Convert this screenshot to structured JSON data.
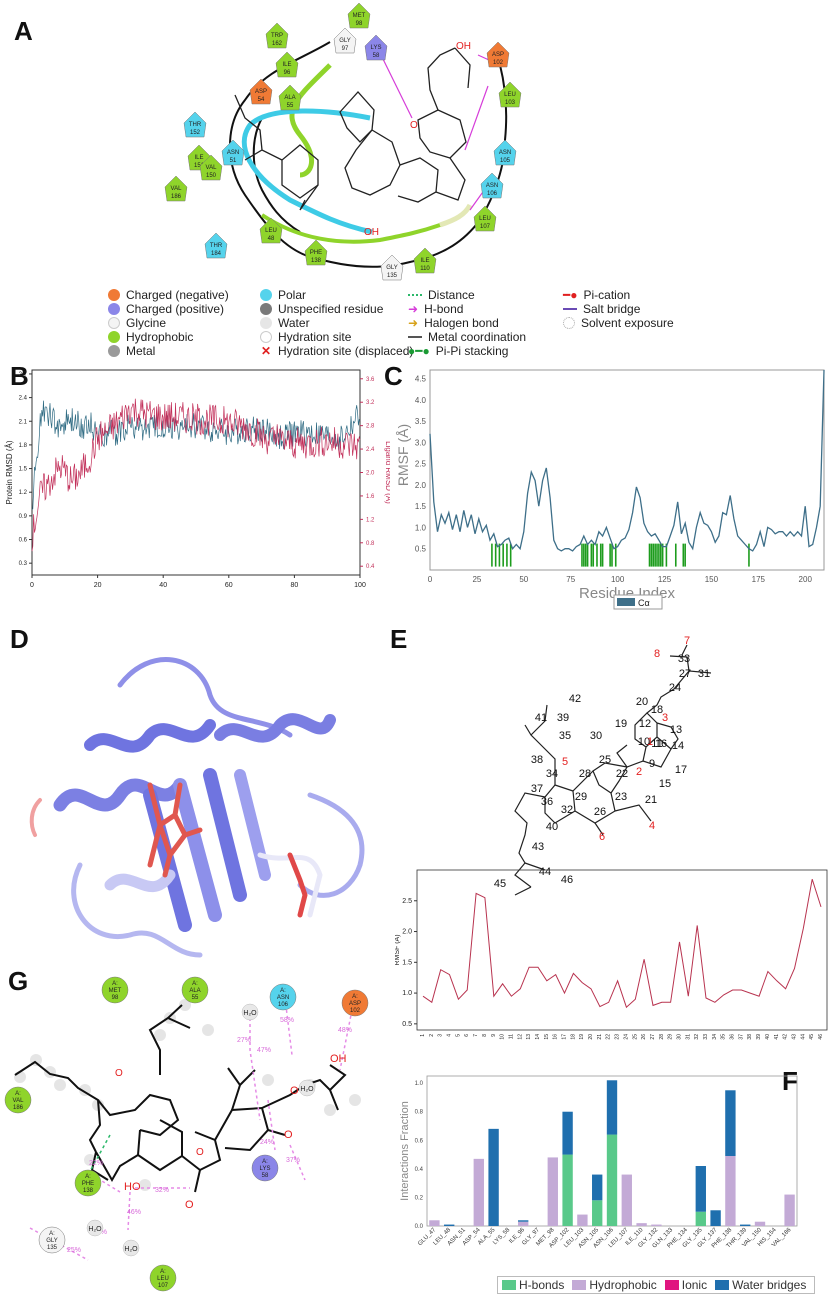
{
  "panel_labels": {
    "a": "A",
    "b": "B",
    "c": "C",
    "d": "D",
    "e": "E",
    "f": "F",
    "g": "G"
  },
  "colors": {
    "charged_negative": "#f07a35",
    "charged_positive": "#8b86e8",
    "glycine": "#f4f4f4",
    "hydrophobic": "#8fd42b",
    "metal": "#9a9a9a",
    "polar": "#55d3ec",
    "protein_rmsd": "#2f6b83",
    "ligand_rmsd": "#c2305a",
    "rmsf_line": "#3e6f89",
    "contact_bar": "#1d9c1d",
    "hbond": "#59c98a",
    "hydrophobic_bar": "#c3aad6",
    "ionic": "#e0157f",
    "water_bridge": "#1f6fae"
  },
  "panel_a": {
    "residues": [
      {
        "name": "TRP",
        "num": "162",
        "type": "hydrophobic"
      },
      {
        "name": "MET",
        "num": "98",
        "type": "hydrophobic"
      },
      {
        "name": "GLY",
        "num": "97",
        "type": "glycine"
      },
      {
        "name": "ILE",
        "num": "96",
        "type": "hydrophobic"
      },
      {
        "name": "LYS",
        "num": "58",
        "type": "charged_positive"
      },
      {
        "name": "ASP",
        "num": "54",
        "type": "charged_negative"
      },
      {
        "name": "ALA",
        "num": "55",
        "type": "hydrophobic"
      },
      {
        "name": "THR",
        "num": "152",
        "type": "polar"
      },
      {
        "name": "ASN",
        "num": "51",
        "type": "polar"
      },
      {
        "name": "ILE",
        "num": "151",
        "type": "hydrophobic"
      },
      {
        "name": "VAL",
        "num": "186",
        "type": "hydrophobic"
      },
      {
        "name": "VAL",
        "num": "150",
        "type": "hydrophobic"
      },
      {
        "name": "THR",
        "num": "184",
        "type": "polar"
      },
      {
        "name": "LEU",
        "num": "48",
        "type": "hydrophobic"
      },
      {
        "name": "PHE",
        "num": "138",
        "type": "hydrophobic"
      },
      {
        "name": "GLY",
        "num": "135",
        "type": "glycine"
      },
      {
        "name": "ILE",
        "num": "110",
        "type": "hydrophobic"
      },
      {
        "name": "LEU",
        "num": "107",
        "type": "hydrophobic"
      },
      {
        "name": "ASN",
        "num": "106",
        "type": "polar"
      },
      {
        "name": "ASN",
        "num": "105",
        "type": "polar"
      },
      {
        "name": "LEU",
        "num": "103",
        "type": "hydrophobic"
      },
      {
        "name": "ASP",
        "num": "102",
        "type": "charged_negative"
      }
    ],
    "atom_labels": {
      "oh1": "OH",
      "oh2": "OH",
      "o": "O"
    },
    "legend": {
      "col1": [
        "Charged (negative)",
        "Charged (positive)",
        "Glycine",
        "Hydrophobic",
        "Metal"
      ],
      "col2": [
        "Polar",
        "Unspecified residue",
        "Water",
        "Hydration site",
        "Hydration site (displaced)"
      ],
      "col3": [
        "Distance",
        "H-bond",
        "Halogen bond",
        "Metal coordination",
        "Pi-Pi stacking"
      ],
      "col4": [
        "Pi-cation",
        "Salt bridge",
        "Solvent exposure"
      ]
    }
  },
  "panel_b": {
    "chart_data": {
      "type": "line",
      "xlabel": "Time (nsec)",
      "ylabel_left": "Protein RMSD (Å)",
      "ylabel_right": "Ligand RMSD (Å)",
      "xlim": [
        0,
        100
      ],
      "ylim_left": [
        0.15,
        2.75
      ],
      "ylim_right": [
        0.25,
        3.75
      ],
      "xticks": [
        "0",
        "20",
        "40",
        "60",
        "80",
        "100"
      ],
      "yticks_left": [
        "0.3",
        "0.6",
        "0.9",
        "1.2",
        "1.5",
        "1.8",
        "2.1",
        "2.4",
        "2.7"
      ],
      "yticks_right": [
        "0.4",
        "0.8",
        "1.2",
        "1.6",
        "2.0",
        "2.4",
        "2.8",
        "3.2",
        "3.6"
      ],
      "series": [
        {
          "name": "Protein RMSD",
          "x": [
            0,
            1,
            2,
            3,
            5,
            7,
            9,
            12,
            15,
            18,
            20,
            25,
            30,
            35,
            40,
            45,
            50,
            55,
            60,
            65,
            70,
            75,
            80,
            85,
            90,
            95,
            100
          ],
          "values": [
            0.9,
            1.55,
            1.9,
            2.25,
            2.2,
            2.05,
            2.05,
            2.1,
            2.05,
            2.05,
            1.95,
            1.95,
            2.05,
            2.0,
            2.05,
            2.0,
            2.05,
            2.0,
            1.95,
            2.0,
            2.0,
            1.9,
            1.95,
            1.95,
            1.9,
            1.9,
            2.2
          ]
        },
        {
          "name": "Ligand RMSD",
          "x": [
            0,
            1,
            2,
            3,
            5,
            7,
            9,
            12,
            15,
            18,
            20,
            25,
            30,
            35,
            40,
            45,
            50,
            55,
            60,
            65,
            70,
            75,
            80,
            85,
            90,
            95,
            100
          ],
          "values": [
            0.9,
            1.2,
            1.5,
            1.7,
            1.8,
            2.0,
            2.1,
            1.85,
            2.0,
            2.3,
            2.6,
            2.8,
            3.1,
            3.0,
            2.95,
            2.95,
            2.9,
            2.9,
            2.85,
            2.8,
            2.6,
            2.55,
            2.5,
            2.5,
            2.55,
            2.5,
            2.45
          ]
        }
      ]
    }
  },
  "panel_c": {
    "chart_data": {
      "type": "line",
      "xlabel": "Residue Index",
      "ylabel": "RMSF (Å)",
      "xlim": [
        0,
        210
      ],
      "ylim": [
        0,
        4.7
      ],
      "xticks": [
        "0",
        "25",
        "50",
        "75",
        "100",
        "125",
        "150",
        "175",
        "200"
      ],
      "yticks": [
        "0.5",
        "1.0",
        "1.5",
        "2.0",
        "2.5",
        "3.0",
        "3.5",
        "4.0",
        "4.5"
      ],
      "legend": [
        "Cα"
      ],
      "x": [
        0,
        2,
        4,
        6,
        8,
        10,
        12,
        14,
        16,
        18,
        20,
        22,
        24,
        26,
        28,
        30,
        32,
        34,
        36,
        38,
        40,
        42,
        44,
        46,
        48,
        50,
        52,
        54,
        56,
        58,
        60,
        62,
        64,
        66,
        68,
        70,
        72,
        74,
        76,
        78,
        80,
        82,
        84,
        86,
        88,
        90,
        92,
        94,
        96,
        98,
        100,
        102,
        104,
        106,
        108,
        110,
        112,
        114,
        116,
        118,
        120,
        122,
        124,
        126,
        128,
        130,
        132,
        134,
        136,
        138,
        140,
        142,
        144,
        146,
        148,
        150,
        152,
        154,
        156,
        158,
        160,
        162,
        164,
        166,
        168,
        170,
        172,
        174,
        176,
        178,
        180,
        182,
        184,
        186,
        188,
        190,
        192,
        194,
        196,
        198,
        200,
        202,
        204,
        206,
        208,
        210
      ],
      "values": [
        3.2,
        1.6,
        0.9,
        1.3,
        1.1,
        1.35,
        0.95,
        1.3,
        0.9,
        1.4,
        1.0,
        1.3,
        0.85,
        1.2,
        0.9,
        1.05,
        0.7,
        0.85,
        0.55,
        0.6,
        0.7,
        0.75,
        0.5,
        0.6,
        0.5,
        0.9,
        1.8,
        2.3,
        2.1,
        1.5,
        2.1,
        2.4,
        1.7,
        0.7,
        0.5,
        0.45,
        0.5,
        0.5,
        0.45,
        0.55,
        0.6,
        0.8,
        0.6,
        0.7,
        0.6,
        0.9,
        0.8,
        1.0,
        0.75,
        0.5,
        0.55,
        0.7,
        0.75,
        0.95,
        1.35,
        1.95,
        1.7,
        1.1,
        0.9,
        0.8,
        0.85,
        0.7,
        0.55,
        0.55,
        0.8,
        1.05,
        1.6,
        0.85,
        1.1,
        0.65,
        0.5,
        1.0,
        1.35,
        1.1,
        1.05,
        0.9,
        0.65,
        0.8,
        1.35,
        1.3,
        1.75,
        1.2,
        0.8,
        0.7,
        0.6,
        0.5,
        0.45,
        0.6,
        0.9,
        0.55,
        1.0,
        0.95,
        0.85,
        0.9,
        0.9,
        0.8,
        0.9,
        0.8,
        0.9,
        0.8,
        1.5,
        0.55,
        0.6,
        1.0,
        1.5,
        4.7
      ],
      "contacts": [
        33,
        35,
        37,
        39,
        41,
        43,
        81,
        82,
        83,
        84,
        86,
        87,
        89,
        91,
        92,
        96,
        97,
        99,
        117,
        118,
        119,
        120,
        121,
        122,
        123,
        124,
        126,
        131,
        135,
        136,
        170
      ]
    }
  },
  "panel_e": {
    "atoms": [
      "7",
      "8",
      "33",
      "27",
      "31",
      "24",
      "20",
      "18",
      "42",
      "41",
      "39",
      "19",
      "12",
      "3",
      "35",
      "30",
      "10",
      "13",
      "16",
      "14",
      "11",
      "38",
      "5",
      "34",
      "28",
      "25",
      "22",
      "2",
      "9",
      "15",
      "17",
      "37",
      "36",
      "29",
      "23",
      "21",
      "32",
      "26",
      "40",
      "6",
      "4",
      "43",
      "44",
      "46",
      "45",
      "1"
    ],
    "chart_data": {
      "type": "line",
      "ylabel": "RMSF (Å)",
      "ylim": [
        0.4,
        3.0
      ],
      "yticks": [
        "0.5",
        "1.0",
        "1.5",
        "2.0",
        "2.5"
      ],
      "categories": [
        "1",
        "2",
        "3",
        "4",
        "5",
        "6",
        "7",
        "8",
        "9",
        "10",
        "11",
        "12",
        "13",
        "14",
        "15",
        "16",
        "17",
        "18",
        "19",
        "20",
        "21",
        "22",
        "23",
        "24",
        "25",
        "26",
        "27",
        "28",
        "29",
        "30",
        "31",
        "32",
        "33",
        "34",
        "35",
        "36",
        "37",
        "38",
        "39",
        "40",
        "41",
        "42",
        "43",
        "44",
        "45",
        "46"
      ],
      "values": [
        0.95,
        0.85,
        1.38,
        1.3,
        0.9,
        1.05,
        2.62,
        2.55,
        0.95,
        1.15,
        0.95,
        1.07,
        1.42,
        1.42,
        1.2,
        1.3,
        1.0,
        1.32,
        1.17,
        1.07,
        0.78,
        0.85,
        1.2,
        0.77,
        0.9,
        1.55,
        0.8,
        0.85,
        0.85,
        1.83,
        0.95,
        2.1,
        0.92,
        0.85,
        0.97,
        1.05,
        1.05,
        1.0,
        0.95,
        1.35,
        1.2,
        1.07,
        1.4,
        2.05,
        2.85,
        2.4
      ]
    }
  },
  "panel_f": {
    "chart_data": {
      "type": "bar",
      "ylabel": "Interactions Fraction",
      "ylim": [
        0,
        1.05
      ],
      "yticks": [
        "0.0",
        "0.2",
        "0.4",
        "0.6",
        "0.8",
        "1.0"
      ],
      "categories": [
        "GLU_47",
        "LEU_48",
        "ASN_51",
        "ASP_54",
        "ALA_55",
        "LYS_58",
        "ILE_96",
        "GLY_97",
        "MET_98",
        "ASP_102",
        "LEU_103",
        "ASN_105",
        "ASN_106",
        "LEU_107",
        "ILE_110",
        "GLY_132",
        "GLN_133",
        "PHE_134",
        "GLY_135",
        "GLY_137",
        "PHE_138",
        "THR_139",
        "VAL_150",
        "HIS_154",
        "VAL_186"
      ],
      "series": [
        {
          "name": "H-bonds",
          "values": [
            0,
            0,
            0,
            0,
            0,
            0,
            0,
            0,
            0,
            0.5,
            0,
            0.18,
            0.64,
            0,
            0,
            0,
            0,
            0,
            0.1,
            0,
            0,
            0,
            0,
            0,
            0
          ]
        },
        {
          "name": "Hydrophobic",
          "values": [
            0.04,
            0,
            0,
            0.47,
            0,
            0,
            0.03,
            0,
            0.48,
            0,
            0.08,
            0,
            0,
            0.36,
            0.02,
            0.01,
            0,
            0,
            0,
            0,
            0.49,
            0,
            0.03,
            0,
            0.22
          ]
        },
        {
          "name": "Ionic",
          "values": [
            0,
            0,
            0,
            0,
            0,
            0,
            0,
            0,
            0,
            0,
            0,
            0,
            0,
            0,
            0,
            0,
            0,
            0,
            0,
            0,
            0,
            0,
            0,
            0,
            0
          ]
        },
        {
          "name": "Water bridges",
          "values": [
            0,
            0.01,
            0,
            0,
            0.68,
            0,
            0.01,
            0,
            0,
            0.3,
            0,
            0.18,
            0.38,
            0,
            0,
            0,
            0,
            0,
            0.32,
            0.11,
            0.46,
            0.01,
            0,
            0,
            0
          ]
        }
      ]
    }
  },
  "panel_g": {
    "residues": [
      {
        "chain": "A:",
        "name": "MET",
        "num": "98",
        "type": "hydrophobic"
      },
      {
        "chain": "A:",
        "name": "ALA",
        "num": "55",
        "type": "hydrophobic"
      },
      {
        "chain": "A:",
        "name": "ASN",
        "num": "106",
        "type": "polar"
      },
      {
        "chain": "A:",
        "name": "ASP",
        "num": "102",
        "type": "charged_negative"
      },
      {
        "chain": "A:",
        "name": "VAL",
        "num": "186",
        "type": "hydrophobic"
      },
      {
        "chain": "A:",
        "name": "PHE",
        "num": "138",
        "type": "hydrophobic"
      },
      {
        "chain": "A:",
        "name": "LYS",
        "num": "58",
        "type": "charged_positive"
      },
      {
        "chain": "A:",
        "name": "GLY",
        "num": "135",
        "type": "glycine"
      },
      {
        "chain": "A:",
        "name": "LEU",
        "num": "107",
        "type": "hydrophobic"
      }
    ],
    "water_label": "H₂O",
    "percent_labels": [
      "58%",
      "48%",
      "27%",
      "47%",
      "32%",
      "55%",
      "46%",
      "25%",
      "24%",
      "37%",
      "22%"
    ],
    "atom_labels": {
      "oh1": "OH",
      "oh2": "HO",
      "o1": "O",
      "o2": "O",
      "o3": "O",
      "o4": "O",
      "o5": "O"
    }
  }
}
